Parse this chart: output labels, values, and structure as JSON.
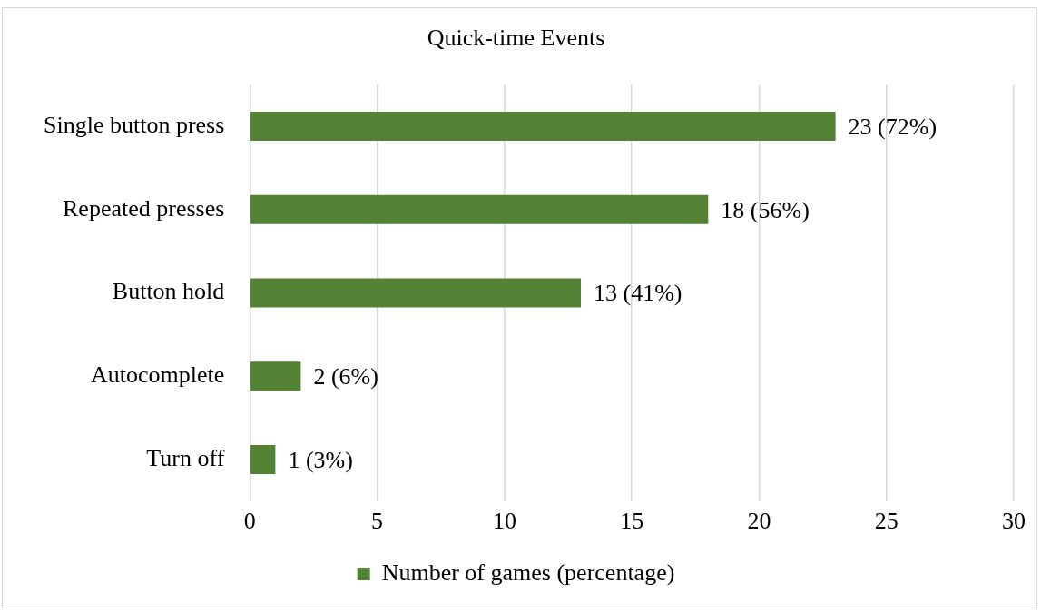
{
  "chart_data": {
    "type": "bar",
    "orientation": "horizontal",
    "title": "Quick-time Events",
    "categories": [
      "Single button press",
      "Repeated presses",
      "Button hold",
      "Autocomplete",
      "Turn off"
    ],
    "series": [
      {
        "name": "Number of games (percentage)",
        "color": "#548235",
        "values": [
          23,
          18,
          13,
          2,
          1
        ],
        "value_labels": [
          "23 (72%)",
          "18 (56%)",
          "13 (41%)",
          "2 (6%)",
          "1 (3%)"
        ]
      }
    ],
    "xlim": [
      0,
      30
    ],
    "xticks": [
      0,
      5,
      10,
      15,
      20,
      25,
      30
    ],
    "grid": "x",
    "legend": "bottom"
  }
}
